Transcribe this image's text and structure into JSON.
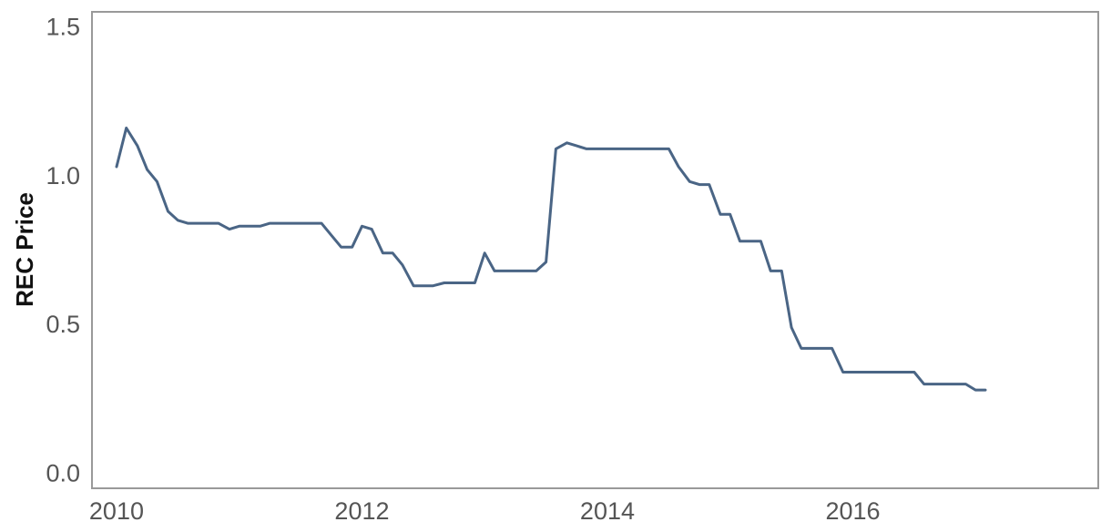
{
  "chart_data": {
    "type": "line",
    "title": "",
    "xlabel": "",
    "ylabel": "REC Price",
    "xlim": [
      2009.8,
      2018.0
    ],
    "ylim": [
      -0.05,
      1.55
    ],
    "x_ticks": [
      2010,
      2012,
      2014,
      2016
    ],
    "x_tick_labels": [
      "2010",
      "2012",
      "2014",
      "2016"
    ],
    "y_ticks": [
      0.0,
      0.5,
      1.0,
      1.5
    ],
    "y_tick_labels": [
      "0.0",
      "0.5",
      "1.0",
      "1.5"
    ],
    "grid": false,
    "line_color": "#4a6585",
    "frame_color": "#999999",
    "series": [
      {
        "x": [
          2010.0,
          2010.08,
          2010.17,
          2010.25,
          2010.33,
          2010.42,
          2010.5,
          2010.58,
          2010.67,
          2010.75,
          2010.83,
          2010.92,
          2011.0,
          2011.08,
          2011.17,
          2011.25,
          2011.33,
          2011.42,
          2011.5,
          2011.58,
          2011.67,
          2011.75,
          2011.83,
          2011.92,
          2012.0,
          2012.08,
          2012.17,
          2012.25,
          2012.33,
          2012.42,
          2012.5,
          2012.58,
          2012.67,
          2012.75,
          2012.83,
          2012.92,
          2013.0,
          2013.08,
          2013.17,
          2013.25,
          2013.33,
          2013.42,
          2013.5,
          2013.58,
          2013.67,
          2013.75,
          2013.83,
          2013.92,
          2014.0,
          2014.08,
          2014.17,
          2014.25,
          2014.33,
          2014.42,
          2014.5,
          2014.58,
          2014.67,
          2014.75,
          2014.83,
          2014.92,
          2015.0,
          2015.08,
          2015.17,
          2015.25,
          2015.33,
          2015.42,
          2015.5,
          2015.58,
          2015.67,
          2015.75,
          2015.83,
          2015.92,
          2016.0,
          2016.08,
          2016.17,
          2016.25,
          2016.33,
          2016.42,
          2016.5,
          2016.58,
          2016.67,
          2016.75,
          2016.83,
          2016.92,
          2017.0,
          2017.08
        ],
        "y": [
          1.03,
          1.16,
          1.1,
          1.02,
          0.98,
          0.88,
          0.85,
          0.84,
          0.84,
          0.84,
          0.84,
          0.82,
          0.83,
          0.83,
          0.83,
          0.84,
          0.84,
          0.84,
          0.84,
          0.84,
          0.84,
          0.8,
          0.76,
          0.76,
          0.83,
          0.82,
          0.74,
          0.74,
          0.7,
          0.63,
          0.63,
          0.63,
          0.64,
          0.64,
          0.64,
          0.64,
          0.74,
          0.68,
          0.68,
          0.68,
          0.68,
          0.68,
          0.71,
          1.09,
          1.11,
          1.1,
          1.09,
          1.09,
          1.09,
          1.09,
          1.09,
          1.09,
          1.09,
          1.09,
          1.09,
          1.03,
          0.98,
          0.97,
          0.97,
          0.87,
          0.87,
          0.78,
          0.78,
          0.78,
          0.68,
          0.68,
          0.49,
          0.42,
          0.42,
          0.42,
          0.42,
          0.34,
          0.34,
          0.34,
          0.34,
          0.34,
          0.34,
          0.34,
          0.34,
          0.3,
          0.3,
          0.3,
          0.3,
          0.3,
          0.28,
          0.28
        ]
      }
    ]
  }
}
